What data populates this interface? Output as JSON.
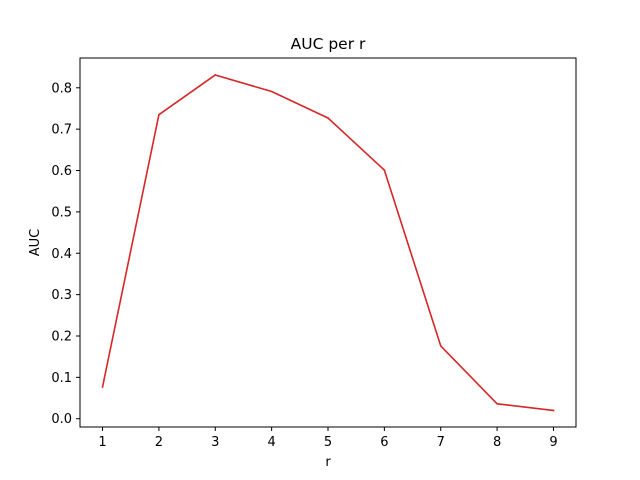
{
  "chart_data": {
    "type": "line",
    "title": "AUC per r",
    "xlabel": "r",
    "ylabel": "AUC",
    "x": [
      1,
      2,
      3,
      4,
      5,
      6,
      7,
      8,
      9
    ],
    "series": [
      {
        "values": [
          0.077,
          0.735,
          0.831,
          0.791,
          0.727,
          0.601,
          0.176,
          0.036,
          0.02
        ],
        "color": "#d62728"
      }
    ],
    "xticks": [
      "1",
      "2",
      "3",
      "4",
      "5",
      "6",
      "7",
      "8",
      "9"
    ],
    "yticks": [
      "0.0",
      "0.1",
      "0.2",
      "0.3",
      "0.4",
      "0.5",
      "0.6",
      "0.7",
      "0.8"
    ],
    "xlim": [
      0.6,
      9.4
    ],
    "ylim": [
      -0.02,
      0.872
    ],
    "grid": false,
    "legend": "none"
  }
}
